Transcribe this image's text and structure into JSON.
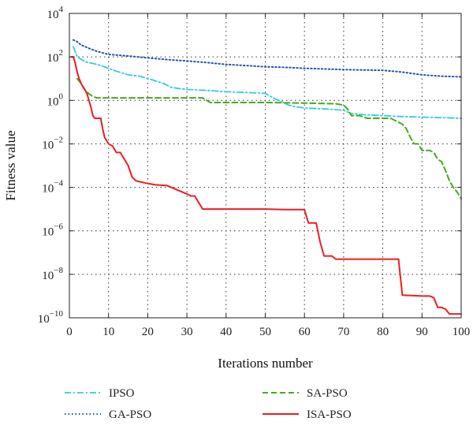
{
  "chart_data": {
    "type": "line",
    "title": "",
    "xlabel": "Iterations number",
    "ylabel": "Fitness value",
    "xlim": [
      0,
      100
    ],
    "ylim": [
      1e-10,
      10000.0
    ],
    "yscale": "log",
    "grid": true,
    "legend_position": "bottom",
    "xticks": [
      0,
      10,
      20,
      30,
      40,
      50,
      60,
      70,
      80,
      90,
      100
    ],
    "yticks": [
      {
        "value": 10000.0,
        "base": "10",
        "exp": "4"
      },
      {
        "value": 100.0,
        "base": "10",
        "exp": "2"
      },
      {
        "value": 1.0,
        "base": "10",
        "exp": "0"
      },
      {
        "value": 0.01,
        "base": "10",
        "exp": "−2"
      },
      {
        "value": 0.0001,
        "base": "10",
        "exp": "−4"
      },
      {
        "value": 1e-06,
        "base": "10",
        "exp": "−6"
      },
      {
        "value": 1e-08,
        "base": "10",
        "exp": "−8"
      },
      {
        "value": 1e-10,
        "base": "10",
        "exp": "−10"
      }
    ],
    "series": [
      {
        "name": "IPSO",
        "color": "#33ccdd",
        "dash": "dashdot",
        "x": [
          1,
          2,
          4,
          6,
          8,
          10,
          12,
          15,
          18,
          21,
          24,
          26,
          28,
          30,
          33,
          36,
          40,
          45,
          50,
          52,
          54,
          56,
          58,
          60,
          63,
          66,
          70,
          72,
          75,
          80,
          85,
          90,
          95,
          100
        ],
        "y": [
          300,
          100,
          60,
          50,
          40,
          30,
          22,
          15,
          13,
          9,
          6,
          4,
          3.5,
          3.2,
          3,
          2.8,
          2.5,
          2.3,
          2.1,
          1.3,
          0.9,
          0.6,
          0.5,
          0.45,
          0.42,
          0.4,
          0.35,
          0.25,
          0.22,
          0.2,
          0.18,
          0.17,
          0.16,
          0.15
        ]
      },
      {
        "name": "GA-PSO",
        "color": "#2255aa",
        "dash": "dotted",
        "x": [
          1,
          2,
          3,
          5,
          7,
          10,
          15,
          20,
          25,
          30,
          35,
          40,
          45,
          50,
          55,
          60,
          65,
          70,
          75,
          80,
          85,
          90,
          95,
          100
        ],
        "y": [
          600,
          500,
          350,
          250,
          180,
          130,
          110,
          90,
          75,
          65,
          55,
          45,
          40,
          35,
          33,
          30,
          28,
          26,
          25,
          24,
          20,
          15,
          13,
          12
        ]
      },
      {
        "name": "SA-PSO",
        "color": "#44aa22",
        "dash": "dashed",
        "x": [
          2,
          3,
          4,
          5,
          6,
          7,
          10,
          15,
          20,
          25,
          30,
          34,
          36,
          40,
          50,
          60,
          68,
          70,
          71,
          72,
          74,
          76,
          80,
          82,
          84,
          85,
          86,
          87,
          88,
          89,
          90,
          91,
          92,
          93,
          94,
          95,
          96,
          97,
          98,
          99,
          100
        ],
        "y": [
          10,
          6,
          3,
          2,
          1.5,
          1.3,
          1.3,
          1.3,
          1.3,
          1.3,
          1.3,
          1.3,
          0.8,
          0.8,
          0.8,
          0.75,
          0.7,
          0.6,
          0.4,
          0.2,
          0.2,
          0.15,
          0.15,
          0.15,
          0.1,
          0.08,
          0.05,
          0.02,
          0.01,
          0.01,
          0.005,
          0.005,
          0.005,
          0.004,
          0.002,
          0.0015,
          0.0006,
          0.0002,
          0.0001,
          6e-05,
          3e-05
        ]
      },
      {
        "name": "ISA-PSO",
        "color": "#ee1c24",
        "dash": "solid",
        "x": [
          0.5,
          1,
          1.5,
          2,
          2.5,
          3,
          3.5,
          4,
          4.5,
          5,
          5.5,
          6,
          6.5,
          7,
          8,
          8.5,
          9,
          10,
          11,
          12,
          13,
          14,
          15,
          16,
          17,
          18,
          20,
          22,
          25,
          28,
          30,
          31,
          32,
          33,
          34,
          40,
          45,
          50,
          55,
          60,
          61,
          63,
          64,
          65,
          66,
          67,
          68,
          70,
          75,
          80,
          84,
          85,
          90,
          92,
          93,
          94,
          95,
          96,
          97,
          98,
          100
        ],
        "y": [
          100,
          100,
          50,
          20,
          10,
          6,
          4,
          3,
          2,
          1,
          0.5,
          0.2,
          0.15,
          0.15,
          0.15,
          0.05,
          0.02,
          0.01,
          0.008,
          0.004,
          0.004,
          0.002,
          0.001,
          0.0003,
          0.0002,
          0.00018,
          0.00015,
          0.00013,
          0.00012,
          7e-05,
          5e-05,
          4e-05,
          4e-05,
          2e-05,
          1e-05,
          1e-05,
          1e-05,
          1e-05,
          9.5e-06,
          9.5e-06,
          2.3e-06,
          2.3e-06,
          3e-07,
          7e-08,
          7e-08,
          7e-08,
          5e-08,
          5e-08,
          5e-08,
          5e-08,
          5e-08,
          1.1e-09,
          1e-09,
          1e-09,
          8.5e-10,
          3e-10,
          3e-10,
          2.5e-10,
          1.5e-10,
          1.5e-10,
          1.5e-10
        ]
      }
    ]
  }
}
